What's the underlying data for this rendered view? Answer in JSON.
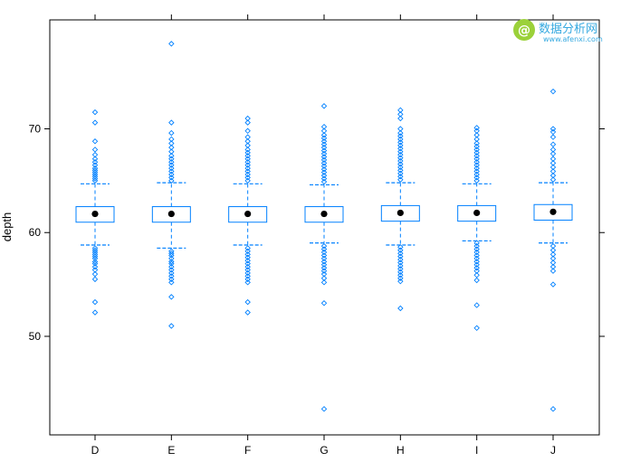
{
  "watermark": {
    "brand_text": "数据分析网",
    "url_text": "www.afenxi.com",
    "logo_glyph": "@"
  },
  "chart_data": {
    "type": "boxplot",
    "title": "",
    "xlabel": "",
    "ylabel": "depth",
    "categories": [
      "D",
      "E",
      "F",
      "G",
      "H",
      "I",
      "J"
    ],
    "ylim": [
      40.5,
      80.5
    ],
    "yticks": [
      50,
      60,
      70
    ],
    "grid": false,
    "color": "#0080ff",
    "median_color": "#000000",
    "boxes": [
      {
        "name": "D",
        "q1": 61.0,
        "median": 61.8,
        "q3": 62.5,
        "whisker_low": 58.8,
        "whisker_high": 64.7,
        "outliers_low": [
          52.3,
          53.3,
          55.5,
          56.0,
          56.4,
          56.7,
          57.0,
          57.2,
          57.5,
          57.7,
          57.9,
          58.1,
          58.3,
          58.5
        ],
        "outliers_high": [
          65.0,
          65.2,
          65.4,
          65.6,
          65.8,
          66.0,
          66.2,
          66.5,
          66.8,
          67.1,
          67.5,
          68.0,
          68.8,
          70.6,
          71.6
        ]
      },
      {
        "name": "E",
        "q1": 61.0,
        "median": 61.8,
        "q3": 62.5,
        "whisker_low": 58.5,
        "whisker_high": 64.8,
        "outliers_low": [
          51.0,
          53.8,
          55.2,
          55.5,
          55.8,
          56.1,
          56.4,
          56.7,
          57.0,
          57.2,
          57.5,
          57.8,
          58.0,
          58.2
        ],
        "outliers_high": [
          65.0,
          65.3,
          65.6,
          65.9,
          66.2,
          66.5,
          66.8,
          67.1,
          67.4,
          67.8,
          68.2,
          68.6,
          69.0,
          69.6,
          70.6,
          78.2
        ]
      },
      {
        "name": "F",
        "q1": 61.0,
        "median": 61.8,
        "q3": 62.5,
        "whisker_low": 58.8,
        "whisker_high": 64.7,
        "outliers_low": [
          52.3,
          53.3,
          55.2,
          55.5,
          55.8,
          56.1,
          56.4,
          56.7,
          57.0,
          57.3,
          57.6,
          57.9,
          58.2,
          58.5
        ],
        "outliers_high": [
          65.0,
          65.3,
          65.6,
          65.9,
          66.2,
          66.5,
          66.8,
          67.1,
          67.4,
          67.7,
          68.0,
          68.4,
          68.8,
          69.2,
          69.8,
          70.6,
          71.0
        ]
      },
      {
        "name": "G",
        "q1": 61.0,
        "median": 61.8,
        "q3": 62.5,
        "whisker_low": 59.0,
        "whisker_high": 64.6,
        "outliers_low": [
          43.0,
          53.2,
          55.2,
          55.6,
          56.0,
          56.3,
          56.6,
          56.9,
          57.2,
          57.5,
          57.8,
          58.1,
          58.4,
          58.7
        ],
        "outliers_high": [
          64.9,
          65.2,
          65.5,
          65.8,
          66.1,
          66.4,
          66.7,
          67.0,
          67.3,
          67.6,
          67.9,
          68.2,
          68.5,
          68.8,
          69.1,
          69.4,
          69.8,
          70.2,
          72.2
        ]
      },
      {
        "name": "H",
        "q1": 61.1,
        "median": 61.9,
        "q3": 62.6,
        "whisker_low": 58.8,
        "whisker_high": 64.8,
        "outliers_low": [
          52.7,
          55.3,
          55.6,
          55.9,
          56.2,
          56.5,
          56.8,
          57.1,
          57.4,
          57.7,
          58.0,
          58.3,
          58.6
        ],
        "outliers_high": [
          65.1,
          65.4,
          65.7,
          66.0,
          66.3,
          66.6,
          66.9,
          67.2,
          67.5,
          67.8,
          68.1,
          68.4,
          68.7,
          69.0,
          69.3,
          69.6,
          70.0,
          71.0,
          71.4,
          71.8
        ]
      },
      {
        "name": "I",
        "q1": 61.1,
        "median": 61.9,
        "q3": 62.6,
        "whisker_low": 59.2,
        "whisker_high": 64.7,
        "outliers_low": [
          50.8,
          53.0,
          55.4,
          55.9,
          56.3,
          56.6,
          56.9,
          57.2,
          57.5,
          57.8,
          58.1,
          58.4,
          58.7,
          59.0
        ],
        "outliers_high": [
          65.0,
          65.3,
          65.6,
          65.9,
          66.2,
          66.5,
          66.8,
          67.1,
          67.4,
          67.7,
          68.0,
          68.3,
          68.6,
          69.0,
          69.4,
          69.8,
          70.1
        ]
      },
      {
        "name": "J",
        "q1": 61.2,
        "median": 62.0,
        "q3": 62.7,
        "whisker_low": 59.0,
        "whisker_high": 64.8,
        "outliers_low": [
          43.0,
          55.0,
          56.3,
          56.7,
          57.1,
          57.5,
          57.9,
          58.3,
          58.7
        ],
        "outliers_high": [
          65.1,
          65.5,
          65.9,
          66.3,
          66.7,
          67.1,
          67.6,
          68.0,
          68.5,
          69.2,
          69.7,
          70.0,
          73.6
        ]
      }
    ]
  }
}
